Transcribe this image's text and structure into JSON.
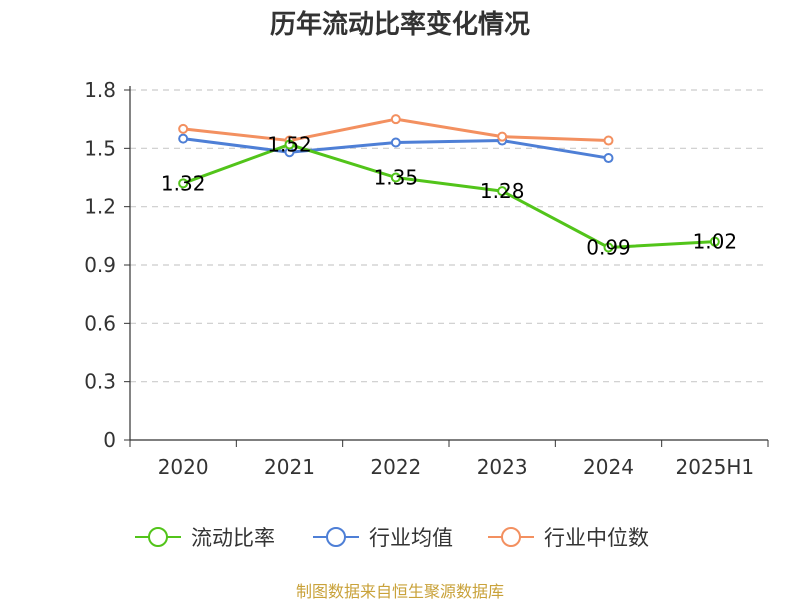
{
  "title": "历年流动比率变化情况",
  "source_note": "制图数据来自恒生聚源数据库",
  "colors": {
    "axis": "#333333",
    "grid": "#cccccc",
    "series": [
      "#52c41a",
      "#4e7fd6",
      "#f39060"
    ]
  },
  "chart_data": {
    "type": "line",
    "title": "历年流动比率变化情况",
    "categories": [
      "2020",
      "2021",
      "2022",
      "2023",
      "2024",
      "2025H1"
    ],
    "y_ticks": [
      "0",
      "0.3",
      "0.6",
      "0.9",
      "1.2",
      "1.5",
      "1.8"
    ],
    "ylim": [
      0,
      1.8
    ],
    "grid": true,
    "legend_position": "bottom",
    "series": [
      {
        "name": "流动比率",
        "values": [
          1.32,
          1.52,
          1.35,
          1.28,
          0.99,
          1.02
        ],
        "labels": [
          "1.32",
          "1.52",
          "1.35",
          "1.28",
          "0.99",
          "1.02"
        ]
      },
      {
        "name": "行业均值",
        "values": [
          1.55,
          1.48,
          1.53,
          1.54,
          1.45,
          null
        ]
      },
      {
        "name": "行业中位数",
        "values": [
          1.6,
          1.54,
          1.65,
          1.56,
          1.54,
          null
        ]
      }
    ]
  }
}
